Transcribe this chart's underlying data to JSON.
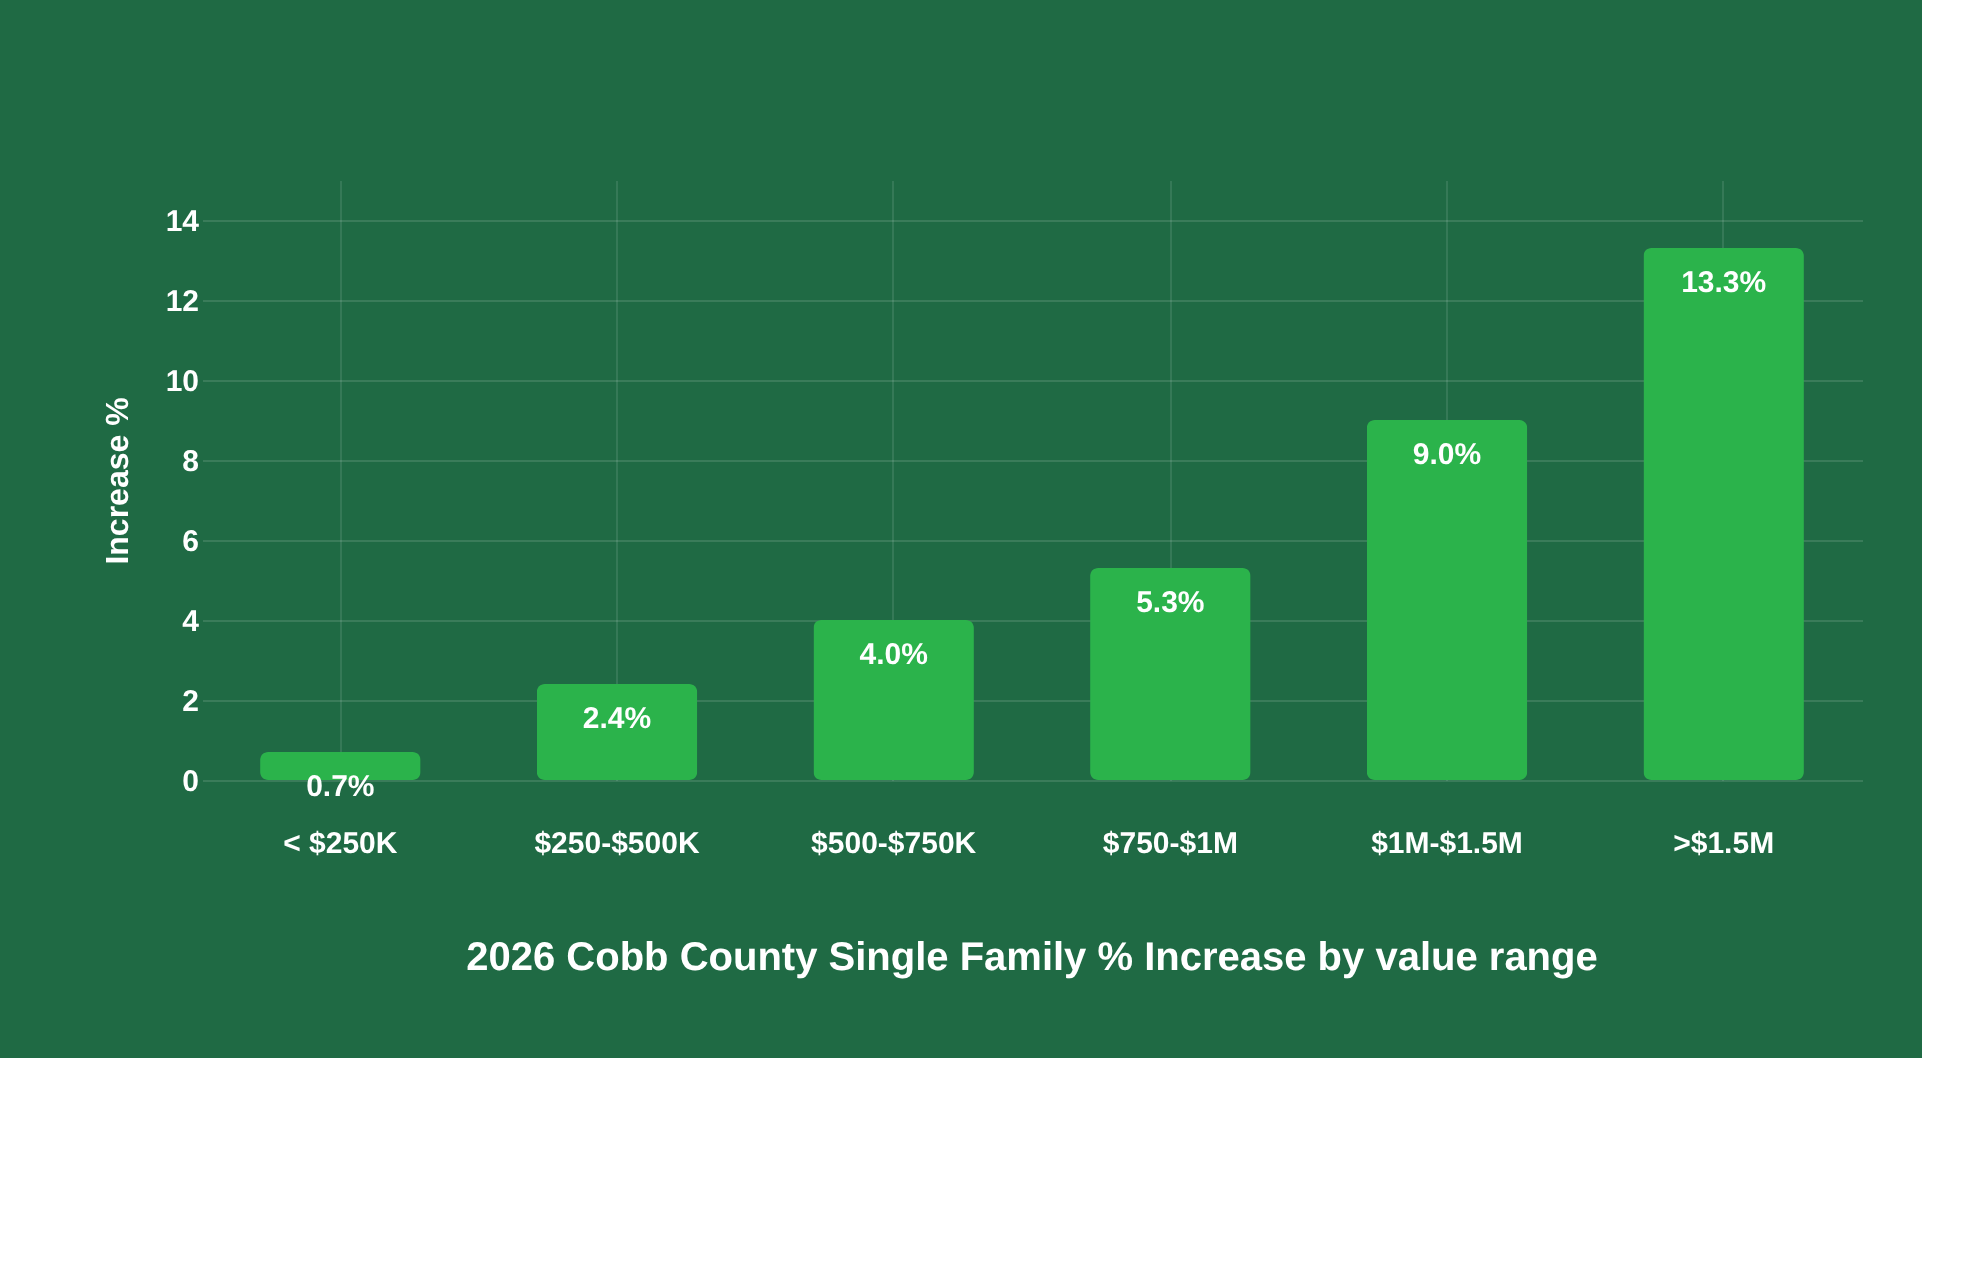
{
  "chart_data": {
    "type": "bar",
    "title": "2026 Cobb County Single Family % Increase by value range",
    "ylabel": "Increase %",
    "categories": [
      "< $250K",
      "$250-$500K",
      "$500-$750K",
      "$750-$1M",
      "$1M-$1.5M",
      ">$1.5M"
    ],
    "values": [
      0.7,
      2.4,
      4.0,
      5.3,
      9.0,
      13.3
    ],
    "value_labels": [
      "0.7%",
      "2.4%",
      "4.0%",
      "5.3%",
      "9.0%",
      "13.3%"
    ],
    "color": "#2bb34b",
    "ylim": [
      0,
      15
    ],
    "yticks": [
      0,
      2,
      4,
      6,
      8,
      10,
      12,
      14
    ],
    "grid": true
  }
}
